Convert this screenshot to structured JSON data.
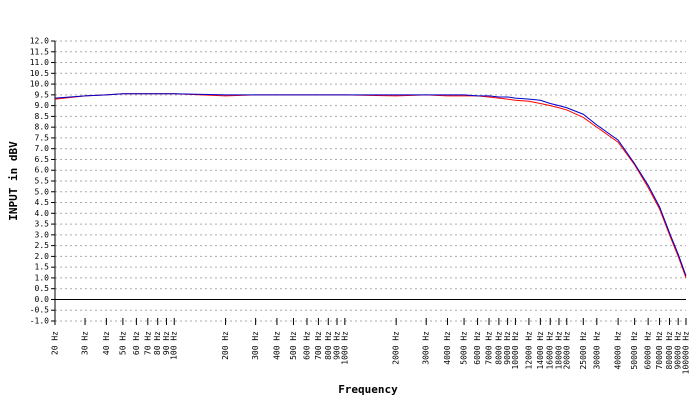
{
  "chart_data": {
    "type": "line",
    "x_label": "Frequency",
    "y_label": "INPUT in dBV",
    "xlog": true,
    "grid": true,
    "x": [
      20,
      30,
      40,
      50,
      60,
      70,
      80,
      90,
      100,
      200,
      300,
      400,
      500,
      600,
      700,
      800,
      900,
      1000,
      2000,
      3000,
      4000,
      5000,
      6000,
      7000,
      8000,
      9000,
      10000,
      12000,
      14000,
      16000,
      18000,
      20000,
      25000,
      30000,
      40000,
      50000,
      60000,
      70000,
      80000,
      90000,
      100000
    ],
    "series": [
      {
        "name": "red",
        "color": "#ff0000",
        "values": [
          9.3,
          9.45,
          9.5,
          9.55,
          9.55,
          9.55,
          9.55,
          9.55,
          9.55,
          9.45,
          9.5,
          9.5,
          9.5,
          9.5,
          9.5,
          9.5,
          9.5,
          9.5,
          9.45,
          9.5,
          9.45,
          9.45,
          9.45,
          9.4,
          9.35,
          9.3,
          9.25,
          9.2,
          9.1,
          9.0,
          8.9,
          8.8,
          8.45,
          8.0,
          7.3,
          6.25,
          5.2,
          4.2,
          3.0,
          2.0,
          1.0
        ]
      },
      {
        "name": "blue",
        "color": "#0000cc",
        "values": [
          9.35,
          9.45,
          9.5,
          9.55,
          9.55,
          9.55,
          9.55,
          9.55,
          9.55,
          9.5,
          9.5,
          9.5,
          9.5,
          9.5,
          9.5,
          9.5,
          9.5,
          9.5,
          9.5,
          9.5,
          9.5,
          9.5,
          9.45,
          9.45,
          9.4,
          9.4,
          9.35,
          9.3,
          9.25,
          9.1,
          9.0,
          8.9,
          8.6,
          8.1,
          7.4,
          6.3,
          5.3,
          4.3,
          3.1,
          2.1,
          1.1
        ]
      }
    ],
    "xlim": [
      20,
      100000
    ],
    "xticks": [
      {
        "value": 20,
        "label": "20 Hz"
      },
      {
        "value": 30,
        "label": "30 Hz"
      },
      {
        "value": 40,
        "label": "40 Hz"
      },
      {
        "value": 50,
        "label": "50 Hz"
      },
      {
        "value": 60,
        "label": "60 Hz"
      },
      {
        "value": 70,
        "label": "70 Hz"
      },
      {
        "value": 80,
        "label": "80 Hz"
      },
      {
        "value": 90,
        "label": "90 Hz"
      },
      {
        "value": 100,
        "label": "100 Hz"
      },
      {
        "value": 200,
        "label": "200 Hz"
      },
      {
        "value": 300,
        "label": "300 Hz"
      },
      {
        "value": 400,
        "label": "400 Hz"
      },
      {
        "value": 500,
        "label": "500 Hz"
      },
      {
        "value": 600,
        "label": "600 Hz"
      },
      {
        "value": 700,
        "label": "700 Hz"
      },
      {
        "value": 800,
        "label": "800 Hz"
      },
      {
        "value": 900,
        "label": "900 Hz"
      },
      {
        "value": 1000,
        "label": "1000 Hz"
      },
      {
        "value": 2000,
        "label": "2000 Hz"
      },
      {
        "value": 3000,
        "label": "3000 Hz"
      },
      {
        "value": 4000,
        "label": "4000 Hz"
      },
      {
        "value": 5000,
        "label": "5000 Hz"
      },
      {
        "value": 6000,
        "label": "6000 Hz"
      },
      {
        "value": 7000,
        "label": "7000 Hz"
      },
      {
        "value": 8000,
        "label": "8000 Hz"
      },
      {
        "value": 9000,
        "label": "9000 Hz"
      },
      {
        "value": 10000,
        "label": "10000 Hz"
      },
      {
        "value": 12000,
        "label": "12000 Hz"
      },
      {
        "value": 14000,
        "label": "14000 Hz"
      },
      {
        "value": 16000,
        "label": "16000 Hz"
      },
      {
        "value": 18000,
        "label": "18000 Hz"
      },
      {
        "value": 20000,
        "label": "20000 Hz"
      },
      {
        "value": 25000,
        "label": "25000 Hz"
      },
      {
        "value": 30000,
        "label": "30000 Hz"
      },
      {
        "value": 40000,
        "label": "40000 Hz"
      },
      {
        "value": 50000,
        "label": "50000 Hz"
      },
      {
        "value": 60000,
        "label": "60000 Hz"
      },
      {
        "value": 70000,
        "label": "70000 Hz"
      },
      {
        "value": 80000,
        "label": "80000 Hz"
      },
      {
        "value": 90000,
        "label": "90000 Hz"
      },
      {
        "value": 100000,
        "label": "100000 Hz"
      }
    ],
    "ylim": [
      -1,
      12
    ],
    "yticks": [
      {
        "value": -1,
        "label": "-1.0"
      },
      {
        "value": -0.5,
        "label": "-0.5"
      },
      {
        "value": 0,
        "label": "0.0"
      },
      {
        "value": 0.5,
        "label": "0.5"
      },
      {
        "value": 1,
        "label": "1.0"
      },
      {
        "value": 1.5,
        "label": "1.5"
      },
      {
        "value": 2,
        "label": "2.0"
      },
      {
        "value": 2.5,
        "label": "2.5"
      },
      {
        "value": 3,
        "label": "3.0"
      },
      {
        "value": 3.5,
        "label": "3.5"
      },
      {
        "value": 4,
        "label": "4.0"
      },
      {
        "value": 4.5,
        "label": "4.5"
      },
      {
        "value": 5,
        "label": "5.0"
      },
      {
        "value": 5.5,
        "label": "5.5"
      },
      {
        "value": 6,
        "label": "6.0"
      },
      {
        "value": 6.5,
        "label": "6.5"
      },
      {
        "value": 7,
        "label": "7.0"
      },
      {
        "value": 7.5,
        "label": "7.5"
      },
      {
        "value": 8,
        "label": "8.0"
      },
      {
        "value": 8.5,
        "label": "8.5"
      },
      {
        "value": 9,
        "label": "9.0"
      },
      {
        "value": 9.5,
        "label": "9.5"
      },
      {
        "value": 10,
        "label": "10.0"
      },
      {
        "value": 10.5,
        "label": "10.5"
      },
      {
        "value": 11,
        "label": "11.0"
      },
      {
        "value": 11.5,
        "label": "11.5"
      },
      {
        "value": 12,
        "label": "12.0"
      }
    ]
  }
}
